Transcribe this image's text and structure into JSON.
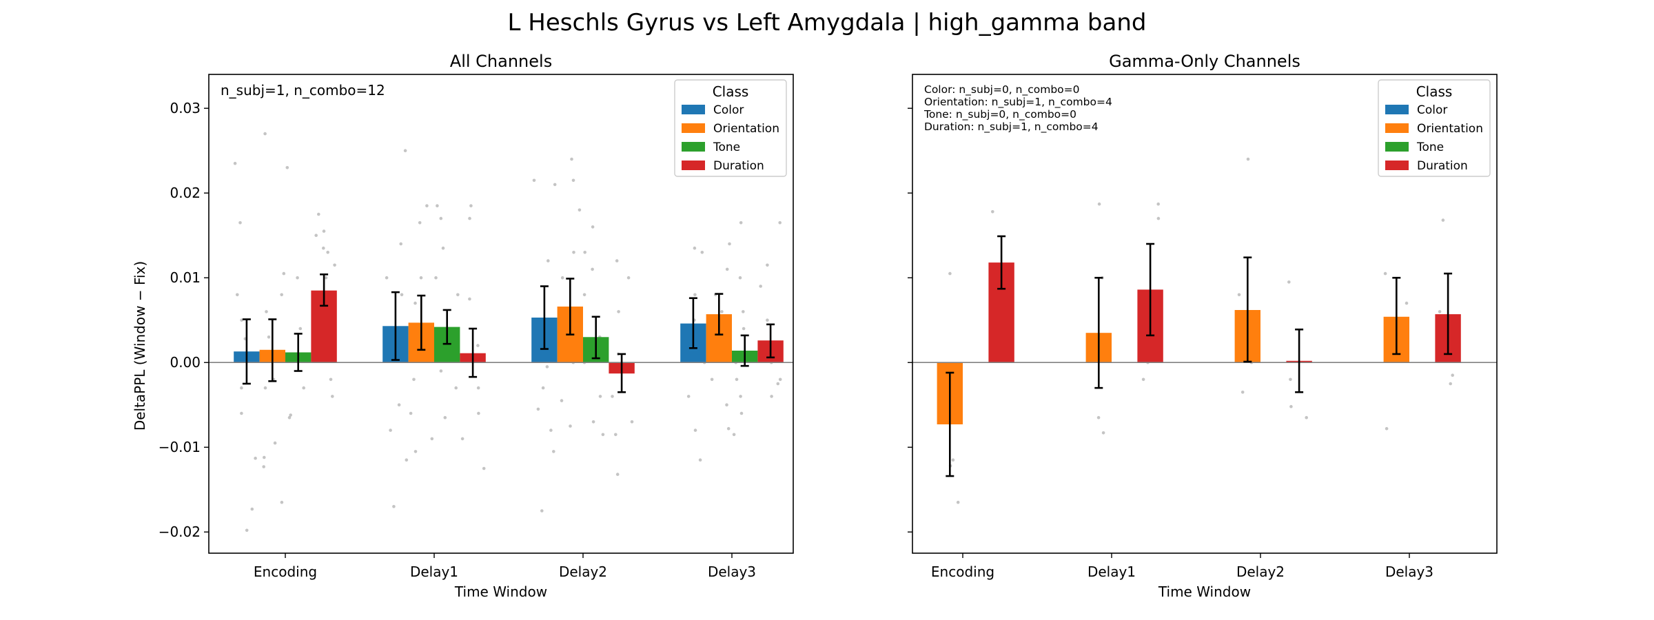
{
  "figure": {
    "title": "L Heschls Gyrus vs Left Amygdala  |  high_gamma band"
  },
  "chart_data": [
    {
      "type": "bar",
      "title": "All Channels",
      "xlabel": "Time Window",
      "ylabel": "DeltaPPL (Window − Fix)",
      "categories": [
        "Encoding",
        "Delay1",
        "Delay2",
        "Delay3"
      ],
      "ylim": [
        -0.0225,
        0.034
      ],
      "yticks": [
        -0.02,
        -0.01,
        0.0,
        0.01,
        0.02,
        0.03
      ],
      "ytick_labels": [
        "−0.02",
        "−0.01",
        "0.00",
        "0.01",
        "0.02",
        "0.03"
      ],
      "legend": {
        "title": "Class",
        "position": "top-right",
        "entries": [
          "Color",
          "Orientation",
          "Tone",
          "Duration"
        ]
      },
      "annotations": [
        "n_subj=1, n_combo=12"
      ],
      "series": [
        {
          "name": "Color",
          "color": "#1f77b4",
          "values": [
            0.0013,
            0.0043,
            0.0053,
            0.0046
          ],
          "err_low": [
            -0.0025,
            0.0003,
            0.0016,
            0.0017
          ],
          "err_high": [
            0.0051,
            0.0083,
            0.009,
            0.0076
          ]
        },
        {
          "name": "Orientation",
          "color": "#ff7f0e",
          "values": [
            0.0015,
            0.0047,
            0.0066,
            0.0057
          ],
          "err_low": [
            -0.0022,
            0.0015,
            0.0033,
            0.0033
          ],
          "err_high": [
            0.0051,
            0.0079,
            0.0099,
            0.0081
          ]
        },
        {
          "name": "Tone",
          "color": "#2ca02c",
          "values": [
            0.0012,
            0.0042,
            0.003,
            0.0014
          ],
          "err_low": [
            -0.001,
            0.0022,
            0.0005,
            -0.0004
          ],
          "err_high": [
            0.0034,
            0.0062,
            0.0054,
            0.0032
          ]
        },
        {
          "name": "Duration",
          "color": "#d62728",
          "values": [
            0.0085,
            0.0011,
            -0.0013,
            0.0026
          ],
          "err_low": [
            0.0067,
            -0.0017,
            -0.0035,
            0.0006
          ],
          "err_high": [
            0.0104,
            0.004,
            0.001,
            0.0045
          ]
        }
      ],
      "points": {
        "Encoding": {
          "Color": [
            0.0235,
            0.0165,
            0.008,
            0.005,
            0.0028,
            0.0005,
            -0.003,
            -0.006,
            -0.0113,
            -0.0173,
            -0.0198
          ],
          "Orientation": [
            0.027,
            0.0105,
            0.008,
            0.006,
            0.003,
            -0.002,
            -0.003,
            -0.0095,
            -0.0112,
            -0.0123,
            -0.0165
          ],
          "Tone": [
            0.023,
            0.01,
            0.004,
            0.001,
            -0.003,
            -0.0062,
            -0.0065
          ],
          "Duration": [
            0.0175,
            0.0155,
            0.015,
            0.0135,
            0.013,
            0.0115,
            0.01,
            0.006,
            -0.002,
            -0.004
          ]
        },
        "Delay1": {
          "Color": [
            0.025,
            0.014,
            0.01,
            0.008,
            0.003,
            -0.005,
            -0.008,
            -0.0115,
            -0.017
          ],
          "Orientation": [
            0.0185,
            0.0165,
            0.01,
            0.007,
            0.002,
            -0.002,
            -0.006,
            -0.009,
            -0.0105
          ],
          "Tone": [
            0.0185,
            0.017,
            0.0135,
            0.01,
            0.008,
            0.002,
            -0.001,
            -0.003,
            -0.0065
          ],
          "Duration": [
            0.0185,
            0.017,
            0.0075,
            0.002,
            -0.003,
            -0.006,
            -0.009,
            -0.0125
          ]
        },
        "Delay2": {
          "Color": [
            0.0215,
            0.021,
            0.012,
            0.005,
            -0.0005,
            -0.003,
            -0.0055,
            -0.008,
            -0.0105,
            -0.0175
          ],
          "Orientation": [
            0.024,
            0.0215,
            0.018,
            0.013,
            0.01,
            0.006,
            0.0,
            -0.0045,
            -0.0075
          ],
          "Tone": [
            0.016,
            0.013,
            0.011,
            0.008,
            0.003,
            0.0,
            -0.004,
            -0.007,
            -0.0085
          ],
          "Duration": [
            0.012,
            0.01,
            0.006,
            0.001,
            -0.004,
            -0.007,
            -0.0085,
            -0.0132
          ]
        },
        "Delay3": {
          "Color": [
            0.0135,
            0.013,
            0.008,
            0.005,
            0.003,
            0.0,
            -0.004,
            -0.008,
            -0.0115
          ],
          "Orientation": [
            0.025,
            0.014,
            0.011,
            0.008,
            0.006,
            0.002,
            -0.002,
            -0.005,
            -0.0078
          ],
          "Tone": [
            0.0165,
            0.01,
            0.006,
            0.004,
            0.0,
            -0.002,
            -0.004,
            -0.006,
            -0.0085
          ],
          "Duration": [
            0.0165,
            0.0115,
            0.009,
            0.005,
            0.0,
            -0.002,
            -0.0025,
            -0.004
          ]
        }
      }
    },
    {
      "type": "bar",
      "title": "Gamma-Only Channels",
      "xlabel": "Time Window",
      "categories": [
        "Encoding",
        "Delay1",
        "Delay2",
        "Delay3"
      ],
      "ylim": [
        -0.0225,
        0.034
      ],
      "yticks": [
        -0.02,
        -0.01,
        0.0,
        0.01,
        0.02,
        0.03
      ],
      "legend": {
        "title": "Class",
        "position": "top-right",
        "entries": [
          "Color",
          "Orientation",
          "Tone",
          "Duration"
        ]
      },
      "annotations": [
        "Color: n_subj=0, n_combo=0",
        "Orientation: n_subj=1, n_combo=4",
        "Tone: n_subj=0, n_combo=0",
        "Duration: n_subj=1, n_combo=4"
      ],
      "series": [
        {
          "name": "Color",
          "color": "#1f77b4",
          "values": [
            null,
            null,
            null,
            null
          ],
          "err_low": [
            null,
            null,
            null,
            null
          ],
          "err_high": [
            null,
            null,
            null,
            null
          ]
        },
        {
          "name": "Orientation",
          "color": "#ff7f0e",
          "values": [
            -0.0073,
            0.0035,
            0.0062,
            0.0054
          ],
          "err_low": [
            -0.0134,
            -0.003,
            0.0001,
            0.001
          ],
          "err_high": [
            -0.0012,
            0.01,
            0.0124,
            0.01
          ]
        },
        {
          "name": "Tone",
          "color": "#2ca02c",
          "values": [
            null,
            null,
            null,
            null
          ],
          "err_low": [
            null,
            null,
            null,
            null
          ],
          "err_high": [
            null,
            null,
            null,
            null
          ]
        },
        {
          "name": "Duration",
          "color": "#d62728",
          "values": [
            0.0118,
            0.0086,
            0.0002,
            0.0057
          ],
          "err_low": [
            0.0087,
            0.0032,
            -0.0035,
            0.001
          ],
          "err_high": [
            0.0149,
            0.014,
            0.0039,
            0.0105
          ]
        }
      ],
      "points": {
        "Encoding": {
          "Orientation": [
            0.0105,
            -0.0115,
            -0.0122,
            -0.0165
          ],
          "Duration": [
            0.0178,
            0.011,
            0.003,
            0.0015
          ]
        },
        "Delay1": {
          "Orientation": [
            0.0187,
            0.01,
            -0.0065,
            -0.0083
          ],
          "Duration": [
            0.0187,
            0.017,
            0.0,
            -0.002
          ]
        },
        "Delay2": {
          "Orientation": [
            0.024,
            0.008,
            -0.0035,
            0.0
          ],
          "Duration": [
            0.0095,
            -0.002,
            -0.0052,
            -0.0065
          ]
        },
        "Delay3": {
          "Orientation": [
            0.0105,
            0.007,
            0.002,
            -0.0078
          ],
          "Duration": [
            0.0168,
            0.006,
            -0.0015,
            -0.0025
          ]
        }
      }
    }
  ]
}
